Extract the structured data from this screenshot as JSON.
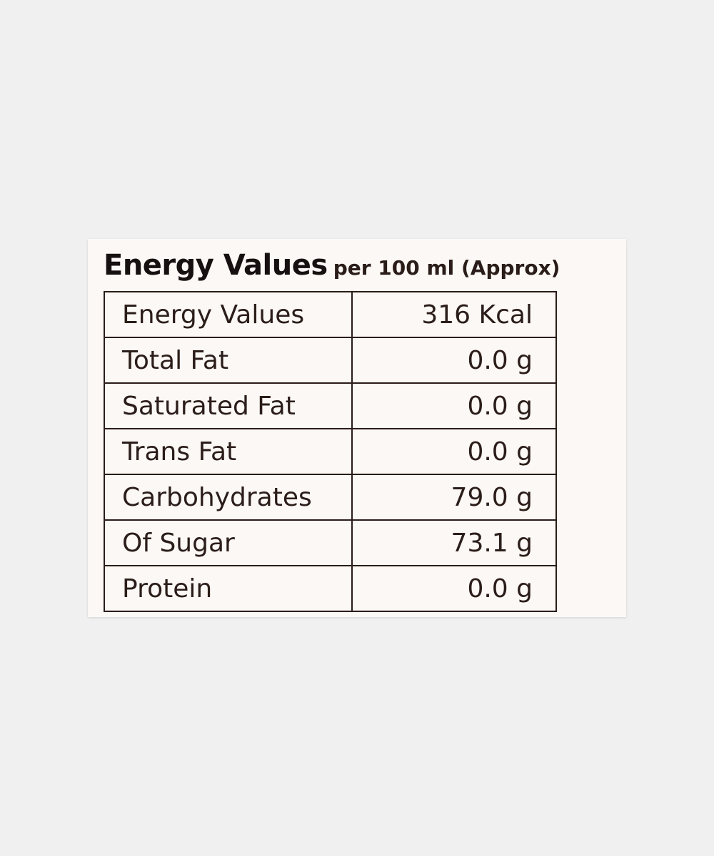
{
  "header": {
    "title": "Energy Values",
    "subtitle": "per 100 ml (Approx)"
  },
  "table": {
    "rows": [
      [
        "Energy Values",
        "316 Kcal"
      ],
      [
        "Total Fat",
        "0.0 g"
      ],
      [
        "Saturated Fat",
        "0.0 g"
      ],
      [
        "Trans Fat",
        "0.0 g"
      ],
      [
        "Carbohydrates",
        "79.0 g"
      ],
      [
        "Of Sugar",
        "73.1 g"
      ],
      [
        "Protein",
        "0.0 g"
      ]
    ]
  }
}
